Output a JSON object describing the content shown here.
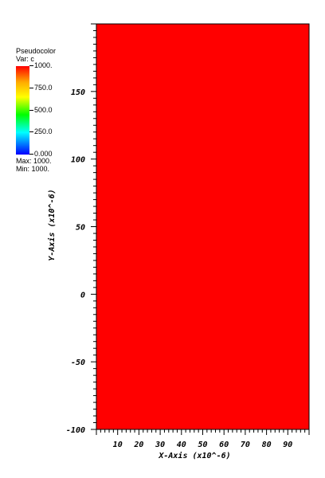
{
  "legend": {
    "title": "Pseudocolor",
    "var_label": "Var: c",
    "ticks": [
      "1000.",
      "750.0",
      "500.0",
      "250.0",
      "0.000"
    ],
    "tick_values": [
      1000,
      750,
      500,
      250,
      0
    ],
    "max_label": "Max:",
    "max_value": "1000.",
    "min_label": "Min:",
    "min_value": "1000."
  },
  "chart_data": {
    "type": "heatmap",
    "title": "",
    "variable": "c",
    "xlabel": "X-Axis (x10^-6)",
    "ylabel": "Y-Axis (x10^-6)",
    "xlim": [
      0,
      100
    ],
    "ylim": [
      -100,
      200
    ],
    "x_tick_labels": [
      "10",
      "20",
      "30",
      "40",
      "50",
      "60",
      "70",
      "80",
      "90"
    ],
    "x_ticks": [
      10,
      20,
      30,
      40,
      50,
      60,
      70,
      80,
      90
    ],
    "y_tick_labels": [
      "-100",
      "-50",
      "0",
      "50",
      "100",
      "150"
    ],
    "y_ticks": [
      -100,
      -50,
      0,
      50,
      100,
      150
    ],
    "field_value": 1000,
    "field_color": "#ff0000",
    "colormap": "hot-to-cold"
  }
}
